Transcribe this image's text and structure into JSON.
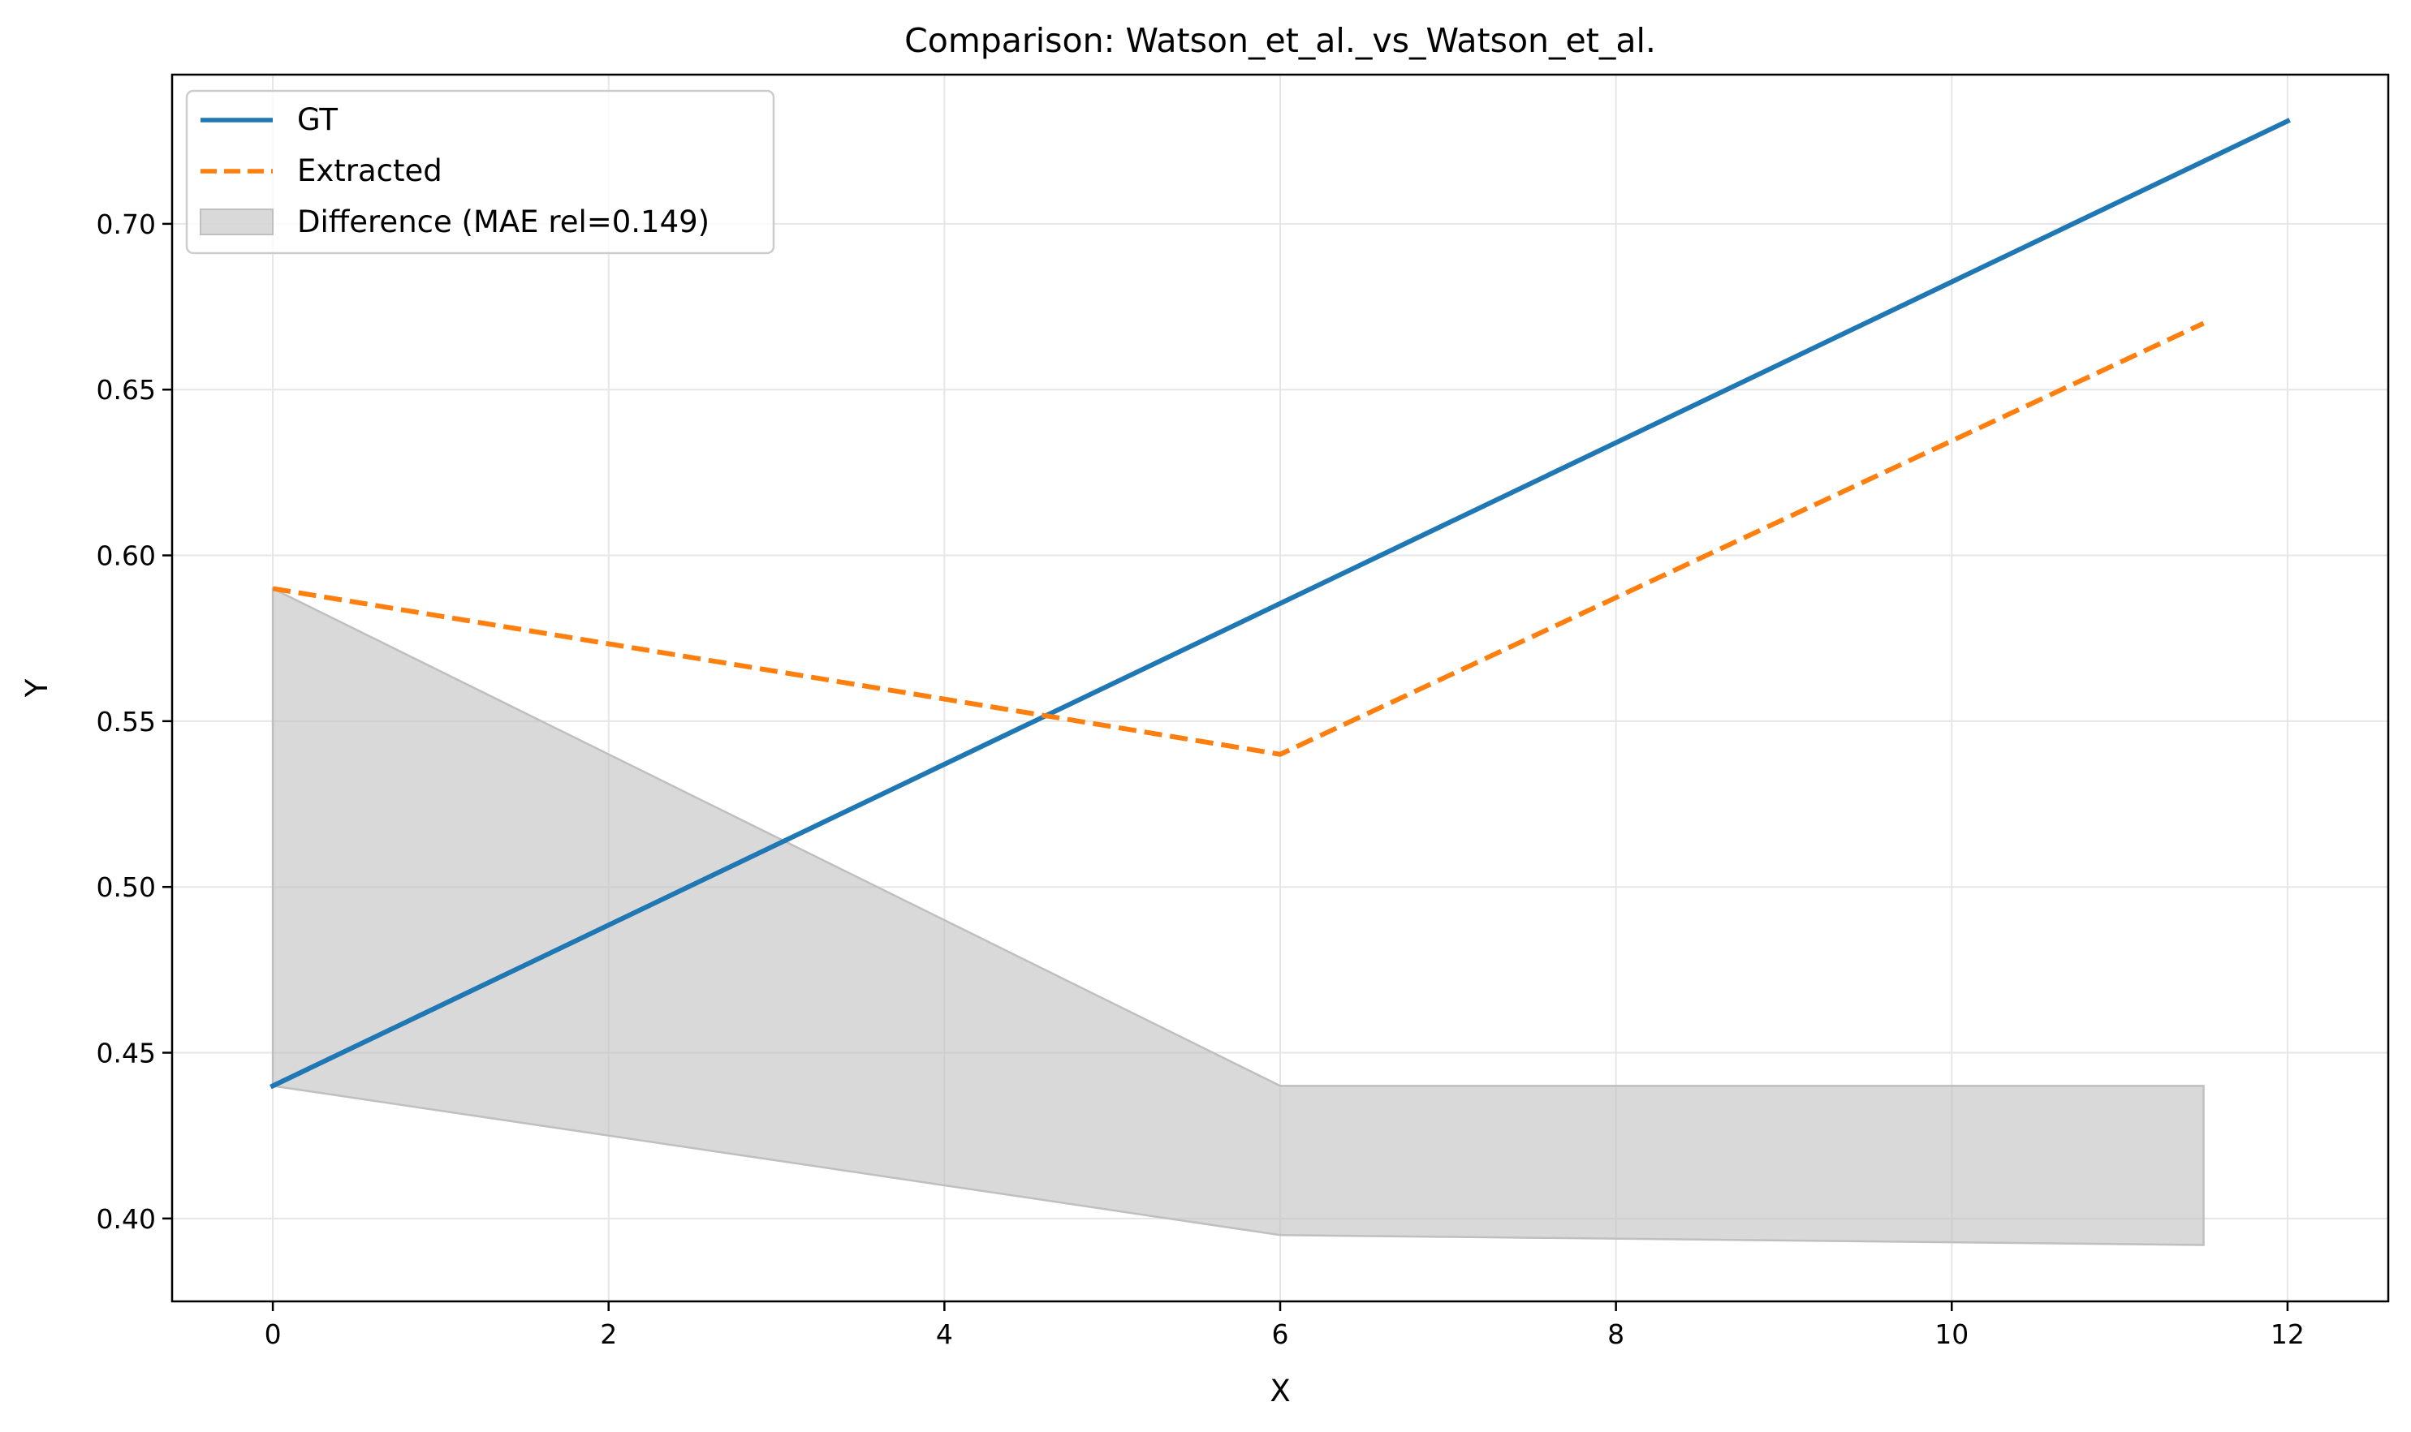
{
  "colors": {
    "gt": "#1f77b4",
    "extracted": "#ff7f0e",
    "difference": "#bfbfbf",
    "grid": "#e6e6e6"
  },
  "chart_data": {
    "type": "line",
    "title": "Comparison: Watson_et_al._vs_Watson_et_al.",
    "xlabel": "X",
    "ylabel": "Y",
    "xlim": [
      -0.6,
      12.6
    ],
    "ylim": [
      0.375,
      0.745
    ],
    "xticks": [
      0,
      2,
      4,
      6,
      8,
      10,
      12
    ],
    "yticks": [
      0.4,
      0.45,
      0.5,
      0.55,
      0.6,
      0.65,
      0.7
    ],
    "xtick_labels": [
      "0",
      "2",
      "4",
      "6",
      "8",
      "10",
      "12"
    ],
    "ytick_labels": [
      "0.40",
      "0.45",
      "0.50",
      "0.55",
      "0.60",
      "0.65",
      "0.70"
    ],
    "grid": true,
    "legend_position": "upper-left",
    "series": [
      {
        "name": "GT",
        "style": "solid",
        "x": [
          0,
          12
        ],
        "y": [
          0.44,
          0.731
        ]
      },
      {
        "name": "Extracted",
        "style": "dashed",
        "x": [
          0,
          6,
          11.5
        ],
        "y": [
          0.59,
          0.54,
          0.67
        ]
      }
    ],
    "fill": {
      "name": "Difference (MAE rel=0.149)",
      "x": [
        0,
        6,
        11.5
      ],
      "upper": [
        0.59,
        0.44,
        0.44
      ],
      "lower": [
        0.44,
        0.395,
        0.392
      ]
    }
  }
}
